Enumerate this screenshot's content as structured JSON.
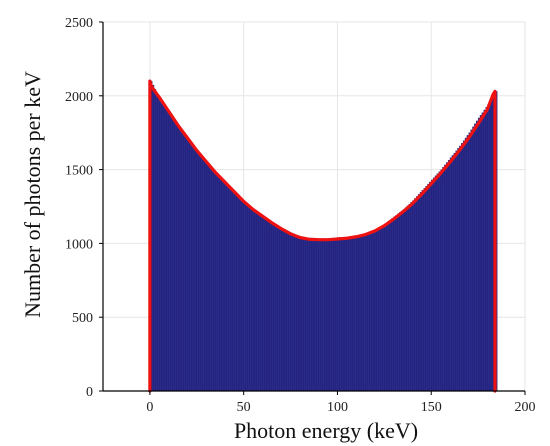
{
  "chart_data": {
    "type": "bar",
    "title": "",
    "xlabel": "Photon energy (keV)",
    "ylabel": "Number of photons per keV",
    "xlim": [
      -25,
      200
    ],
    "ylim": [
      0,
      2500
    ],
    "xticks": [
      0,
      50,
      100,
      150,
      200
    ],
    "yticks": [
      0,
      500,
      1000,
      1500,
      2000,
      2500
    ],
    "grid": true,
    "legend": "none",
    "series": [
      {
        "kind": "histogram",
        "color": "#2a2a8a",
        "x": [
          0,
          5,
          10,
          15,
          20,
          25,
          30,
          35,
          40,
          45,
          50,
          55,
          60,
          65,
          70,
          75,
          80,
          85,
          90,
          95,
          100,
          105,
          110,
          115,
          120,
          125,
          130,
          135,
          140,
          145,
          150,
          155,
          160,
          165,
          170,
          175,
          180,
          184
        ],
        "values": [
          2100,
          1960,
          1880,
          1790,
          1700,
          1610,
          1540,
          1460,
          1400,
          1340,
          1270,
          1220,
          1180,
          1140,
          1100,
          1070,
          1040,
          1030,
          1030,
          1030,
          1040,
          1040,
          1050,
          1060,
          1090,
          1130,
          1180,
          1230,
          1290,
          1360,
          1430,
          1500,
          1580,
          1660,
          1750,
          1850,
          1940,
          2030
        ]
      },
      {
        "kind": "line",
        "color": "#ee1111",
        "x": [
          0,
          1,
          5,
          10,
          15,
          20,
          25,
          30,
          35,
          40,
          45,
          50,
          55,
          60,
          65,
          70,
          75,
          80,
          85,
          90,
          95,
          100,
          105,
          110,
          115,
          120,
          125,
          130,
          135,
          140,
          145,
          150,
          155,
          160,
          165,
          170,
          175,
          180,
          183,
          184
        ],
        "values": [
          2100,
          2060,
          1990,
          1895,
          1800,
          1715,
          1630,
          1555,
          1480,
          1415,
          1350,
          1285,
          1230,
          1185,
          1140,
          1100,
          1065,
          1040,
          1028,
          1025,
          1025,
          1030,
          1035,
          1045,
          1060,
          1085,
          1120,
          1165,
          1215,
          1270,
          1335,
          1405,
          1475,
          1550,
          1630,
          1715,
          1810,
          1910,
          2010,
          2030
        ]
      }
    ],
    "colors": {
      "histogram": "#2a2a8a",
      "fit_line": "#ee1111",
      "grid": "#e6e6e6",
      "axis": "#000000"
    }
  }
}
